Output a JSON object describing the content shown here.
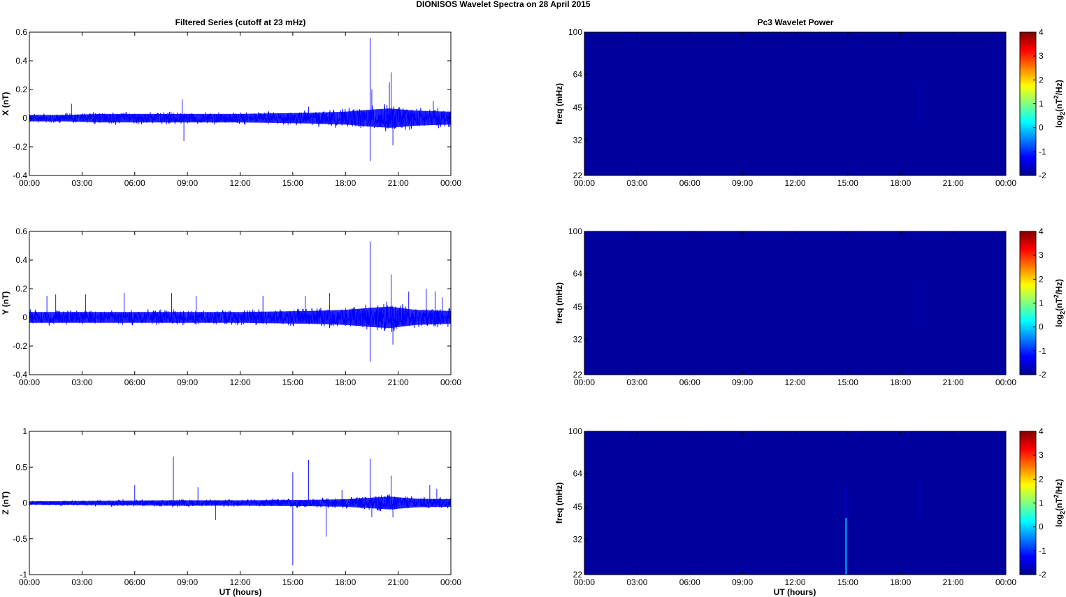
{
  "figure": {
    "title": "DIONISOS Wavelet Spectra on 28 April     2015",
    "left_title": "Filtered Series (cutoff at 23 mHz)",
    "right_title": "Pc3 Wavelet Power",
    "time_ticks": [
      "00:00",
      "03:00",
      "06:00",
      "09:00",
      "12:00",
      "15:00",
      "18:00",
      "21:00",
      "00:00"
    ],
    "xlabel": "UT (hours)"
  },
  "chart_data": [
    {
      "type": "line",
      "component": "X",
      "ylabel": "X (nT)",
      "ylim": [
        -0.4,
        0.6
      ],
      "yticks": [
        -0.4,
        -0.2,
        0,
        0.2,
        0.4,
        0.6
      ],
      "ytick_labels": [
        "-0.4",
        "-0.2",
        "0",
        "0.2",
        "0.4",
        "0.6"
      ],
      "x_range_hours": [
        0,
        24
      ],
      "line_color": "#0000ff",
      "noise_band": [
        [
          0,
          0.03
        ],
        [
          2,
          0.03
        ],
        [
          4,
          0.04
        ],
        [
          8,
          0.04
        ],
        [
          12,
          0.04
        ],
        [
          16,
          0.05
        ],
        [
          18,
          0.06
        ],
        [
          19.5,
          0.08
        ],
        [
          20.5,
          0.09
        ],
        [
          22,
          0.07
        ],
        [
          24,
          0.06
        ]
      ],
      "spikes": [
        [
          2.4,
          0.1
        ],
        [
          8.7,
          0.13
        ],
        [
          8.8,
          -0.16
        ],
        [
          19.4,
          0.56
        ],
        [
          19.4,
          -0.3
        ],
        [
          19.5,
          0.2
        ],
        [
          20.6,
          0.32
        ],
        [
          20.7,
          -0.19
        ],
        [
          20.5,
          0.25
        ],
        [
          23.0,
          0.12
        ],
        [
          15.9,
          0.08
        ]
      ]
    },
    {
      "type": "heatmap",
      "component": "X",
      "ylabel": "freq (mHz)",
      "y_scale": "log",
      "ylim": [
        22,
        100
      ],
      "yticks": [
        22,
        32,
        45,
        64,
        100
      ],
      "ytick_labels": [
        "22",
        "32",
        "45",
        "64",
        "100"
      ],
      "x_range_hours": [
        0,
        24
      ],
      "colorbar_label": "log2(nT²/Hz)",
      "colorbar_ticks": [
        -2,
        -1,
        0,
        1,
        2,
        3,
        4
      ],
      "colorbar_tick_labels": [
        "-2",
        "-1",
        "0",
        "1",
        "2",
        "3",
        "4"
      ],
      "clim": [
        -2,
        4
      ],
      "background_level": -1.9,
      "features": [
        [
          19.1,
          38,
          56,
          -1.7
        ]
      ]
    },
    {
      "type": "line",
      "component": "Y",
      "ylabel": "Y (nT)",
      "ylim": [
        -0.4,
        0.6
      ],
      "yticks": [
        -0.4,
        -0.2,
        0,
        0.2,
        0.4,
        0.6
      ],
      "ytick_labels": [
        "-0.4",
        "-0.2",
        "0",
        "0.2",
        "0.4",
        "0.6"
      ],
      "x_range_hours": [
        0,
        24
      ],
      "line_color": "#0000ff",
      "noise_band": [
        [
          0,
          0.05
        ],
        [
          4,
          0.05
        ],
        [
          8,
          0.05
        ],
        [
          12,
          0.05
        ],
        [
          16,
          0.06
        ],
        [
          18,
          0.07
        ],
        [
          19.5,
          0.09
        ],
        [
          20.5,
          0.1
        ],
        [
          22,
          0.07
        ],
        [
          24,
          0.06
        ]
      ],
      "spikes": [
        [
          1.0,
          0.15
        ],
        [
          1.5,
          0.16
        ],
        [
          3.2,
          0.16
        ],
        [
          5.4,
          0.17
        ],
        [
          8.1,
          0.17
        ],
        [
          9.5,
          0.15
        ],
        [
          13.3,
          0.15
        ],
        [
          15.7,
          0.15
        ],
        [
          17.1,
          0.17
        ],
        [
          19.4,
          0.53
        ],
        [
          19.4,
          -0.31
        ],
        [
          20.6,
          0.3
        ],
        [
          20.7,
          -0.19
        ],
        [
          21.6,
          0.18
        ],
        [
          22.6,
          0.2
        ],
        [
          23.1,
          0.18
        ],
        [
          23.5,
          0.14
        ]
      ]
    },
    {
      "type": "heatmap",
      "component": "Y",
      "ylabel": "freq (mHz)",
      "y_scale": "log",
      "ylim": [
        22,
        100
      ],
      "yticks": [
        22,
        32,
        45,
        64,
        100
      ],
      "ytick_labels": [
        "22",
        "32",
        "45",
        "64",
        "100"
      ],
      "x_range_hours": [
        0,
        24
      ],
      "colorbar_label": "log2(nT²/Hz)",
      "colorbar_ticks": [
        -2,
        -1,
        0,
        1,
        2,
        3,
        4
      ],
      "colorbar_tick_labels": [
        "-2",
        "-1",
        "0",
        "1",
        "2",
        "3",
        "4"
      ],
      "clim": [
        -2,
        4
      ],
      "background_level": -1.9,
      "features": [
        [
          19.1,
          38,
          56,
          -1.75
        ]
      ]
    },
    {
      "type": "line",
      "component": "Z",
      "ylabel": "Z (nT)",
      "ylim": [
        -1,
        1
      ],
      "yticks": [
        -1,
        -0.5,
        0,
        0.5,
        1
      ],
      "ytick_labels": [
        "-1",
        "-0.5",
        "0",
        "0.5",
        "1"
      ],
      "x_range_hours": [
        0,
        24
      ],
      "line_color": "#0000ff",
      "noise_band": [
        [
          0,
          0.03
        ],
        [
          4,
          0.04
        ],
        [
          8,
          0.05
        ],
        [
          12,
          0.05
        ],
        [
          16,
          0.06
        ],
        [
          18,
          0.07
        ],
        [
          19.5,
          0.1
        ],
        [
          20.5,
          0.12
        ],
        [
          22,
          0.08
        ],
        [
          24,
          0.07
        ]
      ],
      "spikes": [
        [
          6.0,
          0.25
        ],
        [
          8.2,
          0.65
        ],
        [
          9.6,
          0.22
        ],
        [
          10.6,
          -0.24
        ],
        [
          15.0,
          0.43
        ],
        [
          15.0,
          -0.87
        ],
        [
          15.9,
          0.6
        ],
        [
          16.9,
          -0.47
        ],
        [
          17.8,
          0.18
        ],
        [
          19.4,
          0.62
        ],
        [
          19.5,
          -0.2
        ],
        [
          20.6,
          0.38
        ],
        [
          20.7,
          -0.2
        ],
        [
          22.8,
          0.25
        ],
        [
          23.2,
          0.2
        ]
      ]
    },
    {
      "type": "heatmap",
      "component": "Z",
      "ylabel": "freq (mHz)",
      "y_scale": "log",
      "ylim": [
        22,
        100
      ],
      "yticks": [
        22,
        32,
        45,
        64,
        100
      ],
      "ytick_labels": [
        "22",
        "32",
        "45",
        "64",
        "100"
      ],
      "x_range_hours": [
        0,
        24
      ],
      "colorbar_label": "log2(nT²/Hz)",
      "colorbar_ticks": [
        -2,
        -1,
        0,
        1,
        2,
        3,
        4
      ],
      "colorbar_tick_labels": [
        "-2",
        "-1",
        "0",
        "1",
        "2",
        "3",
        "4"
      ],
      "clim": [
        -2,
        4
      ],
      "background_level": -1.9,
      "features": [
        [
          14.9,
          22,
          40,
          -0.2
        ],
        [
          14.9,
          40,
          55,
          -1.6
        ],
        [
          19.1,
          40,
          60,
          -1.65
        ]
      ]
    }
  ]
}
